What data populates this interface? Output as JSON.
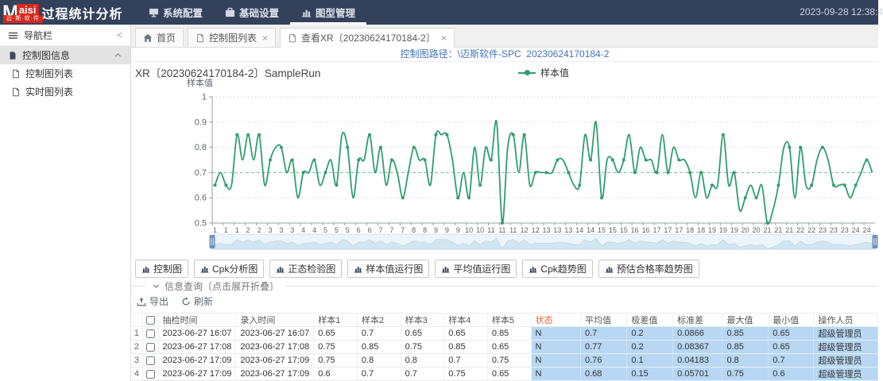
{
  "app": {
    "logo_main": "M",
    "logo_accent": "aisi",
    "logo_sub": "迈·斯·软·件",
    "title": "过程统计分析",
    "menu": [
      {
        "label": "系统配置",
        "icon": "monitor-icon",
        "active": false
      },
      {
        "label": "基础设置",
        "icon": "briefcase-icon",
        "active": false
      },
      {
        "label": "图型管理",
        "icon": "bar-chart-icon",
        "active": true
      }
    ],
    "clock": "2023-09-28 12:38:4"
  },
  "sidebar": {
    "header": "导航栏",
    "items": [
      {
        "label": "控制图信息",
        "icon": "file-filled-icon",
        "selected": true,
        "expanded": true,
        "child": false
      },
      {
        "label": "控制图列表",
        "icon": "file-icon",
        "selected": false,
        "child": true
      },
      {
        "label": "实时图列表",
        "icon": "file-icon",
        "selected": false,
        "child": true
      }
    ]
  },
  "tabs": [
    {
      "label": "首页",
      "icon": "home-icon",
      "closable": false,
      "active": false
    },
    {
      "label": "控制图列表",
      "icon": "file-icon",
      "closable": true,
      "active": false
    },
    {
      "label": "查看XR〔20230624170184-2〕",
      "icon": "file-icon",
      "closable": true,
      "active": true
    }
  ],
  "breadcrumb": "控制图路径：\\迈斯软件-SPC  20230624170184-2",
  "chart_data": {
    "type": "line",
    "title": "XR〔20230624170184-2〕SampleRun",
    "legend": [
      "样本值"
    ],
    "ylabel": "样本值",
    "ylim": [
      0.5,
      1
    ],
    "yticks": [
      1,
      0.9,
      0.8,
      0.7,
      0.6,
      0.5
    ],
    "center_line": 0.7,
    "grid": "dotted",
    "subgroups": 24,
    "samples_per_group": 5,
    "series": [
      {
        "name": "样本值",
        "values": [
          0.65,
          0.7,
          0.65,
          0.65,
          0.85,
          0.75,
          0.85,
          0.75,
          0.85,
          0.65,
          0.75,
          0.8,
          0.8,
          0.7,
          0.75,
          0.6,
          0.7,
          0.7,
          0.75,
          0.65,
          0.7,
          0.75,
          0.65,
          0.85,
          0.8,
          0.6,
          0.75,
          0.75,
          0.85,
          0.7,
          0.8,
          0.65,
          0.75,
          0.7,
          0.6,
          0.7,
          0.8,
          0.75,
          0.75,
          0.65,
          0.85,
          0.85,
          0.85,
          0.75,
          0.6,
          0.7,
          0.6,
          0.8,
          0.65,
          0.8,
          0.75,
          0.9,
          0.5,
          0.8,
          0.85,
          0.7,
          0.85,
          0.65,
          0.7,
          0.7,
          0.7,
          0.7,
          0.75,
          0.75,
          0.7,
          0.65,
          0.65,
          0.85,
          0.75,
          0.9,
          0.6,
          0.75,
          0.75,
          0.7,
          0.75,
          0.85,
          0.7,
          0.8,
          0.75,
          0.75,
          0.7,
          0.85,
          0.7,
          0.8,
          0.75,
          0.75,
          0.7,
          0.6,
          0.7,
          0.6,
          0.65,
          0.65,
          0.85,
          0.65,
          0.7,
          0.55,
          0.6,
          0.65,
          0.6,
          0.65,
          0.5,
          0.55,
          0.65,
          0.8,
          0.8,
          0.6,
          0.8,
          0.65,
          0.65,
          0.75,
          0.8,
          0.75,
          0.65,
          0.65,
          0.65,
          0.6,
          0.65,
          0.7,
          0.75,
          0.7
        ]
      }
    ],
    "datazoom": {
      "present": true,
      "range": "full"
    }
  },
  "chart_buttons": [
    {
      "label": "控制图",
      "icon": "bar-chart-icon"
    },
    {
      "label": "Cpk分析图",
      "icon": "bar-chart-icon"
    },
    {
      "label": "正态检验图",
      "icon": "bar-chart-icon"
    },
    {
      "label": "样本值运行图",
      "icon": "bar-chart-icon"
    },
    {
      "label": "平均值运行图",
      "icon": "bar-chart-icon"
    },
    {
      "label": "Cpk趋势图",
      "icon": "bar-chart-icon"
    },
    {
      "label": "预估合格率趋势图",
      "icon": "bar-chart-icon"
    }
  ],
  "query_section": {
    "title": "信息查询〔点击展开折叠〕",
    "export_label": "导出",
    "refresh_label": "刷新"
  },
  "table": {
    "columns": [
      {
        "key": "idx",
        "label": "",
        "width": 17,
        "type": "rownum"
      },
      {
        "key": "check",
        "label": "",
        "width": 22,
        "type": "checkbox"
      },
      {
        "key": "t1",
        "label": "抽检时间",
        "width": 66
      },
      {
        "key": "t2",
        "label": "录入时间",
        "width": 65
      },
      {
        "key": "s1",
        "label": "样本1",
        "width": 65
      },
      {
        "key": "s2",
        "label": "样本2",
        "width": 65
      },
      {
        "key": "s3",
        "label": "样本3",
        "width": 65
      },
      {
        "key": "s4",
        "label": "样本4",
        "width": 65
      },
      {
        "key": "s5",
        "label": "样本5",
        "width": 65
      },
      {
        "key": "status",
        "label": "状态",
        "width": 82,
        "hl": true,
        "header_accent": true
      },
      {
        "key": "avg",
        "label": "平均值",
        "width": 68,
        "hl": true
      },
      {
        "key": "range",
        "label": "极差值",
        "width": 67,
        "hl": true
      },
      {
        "key": "std",
        "label": "标准差",
        "width": 70,
        "hl": true
      },
      {
        "key": "max",
        "label": "最大值",
        "width": 67,
        "hl": true
      },
      {
        "key": "min",
        "label": "最小值",
        "width": 66,
        "hl": true
      },
      {
        "key": "operator",
        "label": "操作人员",
        "width": 90,
        "hl": true
      }
    ],
    "rows": [
      {
        "idx": "1",
        "t1": "2023-06-27 16:07",
        "t2": "2023-06-27 16:07",
        "s1": "0.65",
        "s2": "0.7",
        "s3": "0.65",
        "s4": "0.65",
        "s5": "0.85",
        "status": "N",
        "avg": "0.7",
        "range": "0.2",
        "std": "0.0866",
        "max": "0.85",
        "min": "0.65",
        "operator": "超级管理员"
      },
      {
        "idx": "2",
        "t1": "2023-06-27 17:08",
        "t2": "2023-06-27 17:08",
        "s1": "0.75",
        "s2": "0.85",
        "s3": "0.75",
        "s4": "0.85",
        "s5": "0.65",
        "status": "N",
        "avg": "0.77",
        "range": "0.2",
        "std": "0.08367",
        "max": "0.85",
        "min": "0.65",
        "operator": "超级管理员"
      },
      {
        "idx": "3",
        "t1": "2023-06-27 17:09",
        "t2": "2023-06-27 17:09",
        "s1": "0.75",
        "s2": "0.8",
        "s3": "0.8",
        "s4": "0.7",
        "s5": "0.75",
        "status": "N",
        "avg": "0.76",
        "range": "0.1",
        "std": "0.04183",
        "max": "0.8",
        "min": "0.7",
        "operator": "超级管理员"
      },
      {
        "idx": "4",
        "t1": "2023-06-27 17:09",
        "t2": "2023-06-27 17:09",
        "s1": "0.6",
        "s2": "0.7",
        "s3": "0.7",
        "s4": "0.75",
        "s5": "0.65",
        "status": "N",
        "avg": "0.68",
        "range": "0.15",
        "std": "0.05701",
        "max": "0.75",
        "min": "0.6",
        "operator": "超级管理员"
      }
    ]
  },
  "colors": {
    "navbar": "#33415a",
    "logo_red": "#d8281f",
    "link_blue": "#4374b7",
    "series_green": "#2f9d6f",
    "center_line_green": "#6fc290",
    "status_cell_blue": "#b7d7f2",
    "status_header_orange": "#e2632d"
  }
}
